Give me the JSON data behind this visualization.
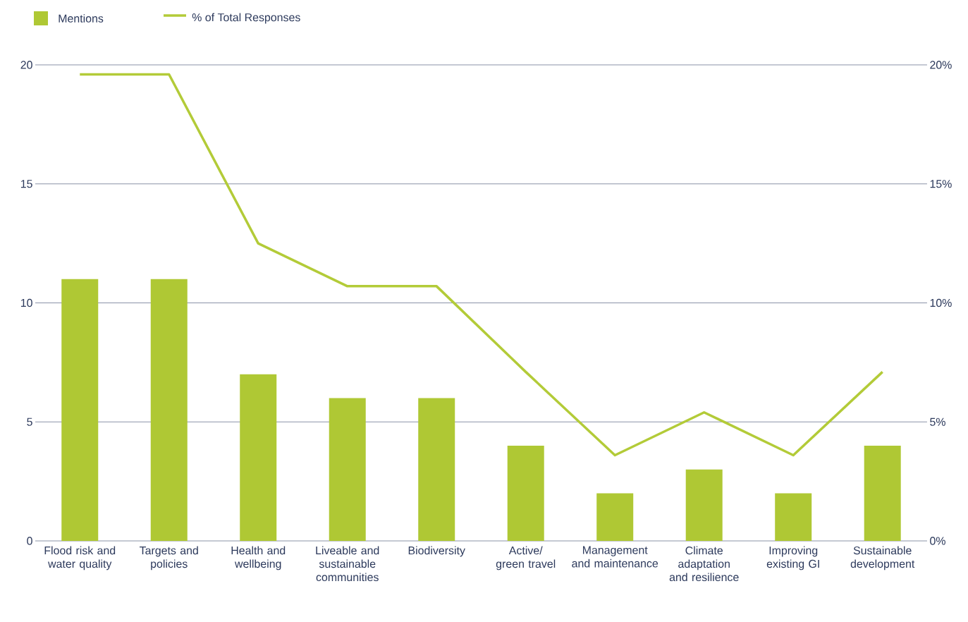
{
  "chart_data": {
    "type": "bar",
    "categories": [
      "Flood risk and water quality",
      "Targets and policies",
      "Health and wellbeing",
      "Liveable and sustainable communities",
      "Biodiversity",
      "Active/ green travel",
      "Management and maintenance",
      "Climate adaptation and resilience",
      "Improving existing GI",
      "Sustainable development"
    ],
    "series": [
      {
        "name": "Mentions",
        "color": "#afc834",
        "values": [
          11,
          11,
          7,
          6,
          6,
          4,
          2,
          3,
          2,
          4
        ]
      },
      {
        "name": "% of Total Responses",
        "type": "line",
        "axis": "y2",
        "color": "#b3cb38",
        "values": [
          19.6,
          19.6,
          12.5,
          10.7,
          10.7,
          7.1,
          3.6,
          5.4,
          3.6,
          7.1
        ]
      }
    ],
    "ylim": [
      0,
      20
    ],
    "yticks": [
      0,
      5,
      10,
      15,
      20
    ],
    "y2lim": [
      0,
      20
    ],
    "y2ticks": [
      {
        "value": 0,
        "label": "0%"
      },
      {
        "value": 5,
        "label": "5%"
      },
      {
        "value": 10,
        "label": "10%"
      },
      {
        "value": 15,
        "label": "15%"
      },
      {
        "value": 20,
        "label": "20%"
      }
    ],
    "grid": "y",
    "legend": "top left"
  }
}
